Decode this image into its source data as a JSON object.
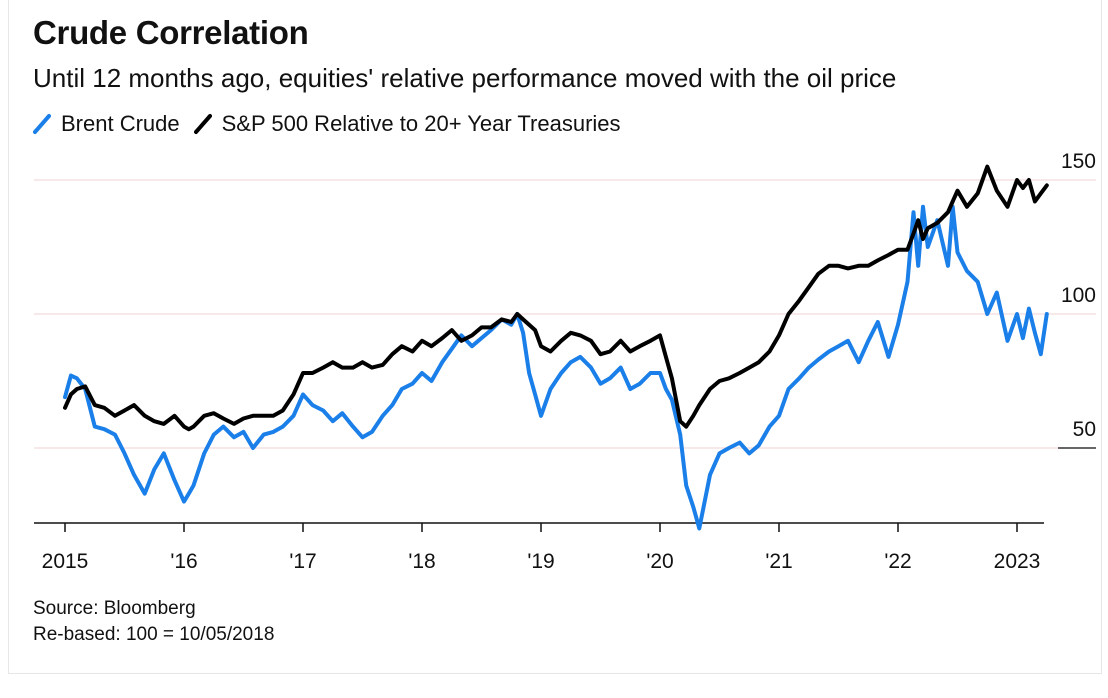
{
  "title": "Crude Correlation",
  "subtitle": "Until 12 months ago, equities' relative performance moved with the oil price",
  "source": "Source: Bloomberg",
  "note": "Re-based: 100 = 10/05/2018",
  "colors": {
    "brent": "#1a7fe8",
    "spx": "#000000",
    "grid": "#f2dcdc",
    "axis": "#111111"
  },
  "chart_data": {
    "type": "line",
    "title": "Crude Correlation",
    "subtitle": "Until 12 months ago, equities' relative performance moved with the oil price",
    "xlabel": "",
    "ylabel": "",
    "xlim": [
      2015.0,
      2023.25
    ],
    "ylim": [
      50,
      150
    ],
    "y_ticks": [
      50,
      100,
      150
    ],
    "x_ticks": [
      {
        "value": 2015,
        "label": "2015"
      },
      {
        "value": 2016,
        "label": "'16"
      },
      {
        "value": 2017,
        "label": "'17"
      },
      {
        "value": 2018,
        "label": "'18"
      },
      {
        "value": 2019,
        "label": "'19"
      },
      {
        "value": 2020,
        "label": "'20"
      },
      {
        "value": 2021,
        "label": "'21"
      },
      {
        "value": 2022,
        "label": "'22"
      },
      {
        "value": 2023,
        "label": "2023"
      }
    ],
    "grid": true,
    "legend_position": "top-left",
    "series": [
      {
        "name": "Brent Crude",
        "color": "#1a7fe8",
        "x": [
          2015.0,
          2015.05,
          2015.1,
          2015.17,
          2015.25,
          2015.33,
          2015.42,
          2015.5,
          2015.58,
          2015.67,
          2015.75,
          2015.83,
          2015.92,
          2016.0,
          2016.04,
          2016.08,
          2016.17,
          2016.25,
          2016.33,
          2016.42,
          2016.5,
          2016.58,
          2016.67,
          2016.75,
          2016.83,
          2016.92,
          2017.0,
          2017.08,
          2017.17,
          2017.25,
          2017.33,
          2017.42,
          2017.5,
          2017.58,
          2017.67,
          2017.75,
          2017.83,
          2017.92,
          2018.0,
          2018.08,
          2018.17,
          2018.25,
          2018.33,
          2018.42,
          2018.5,
          2018.58,
          2018.67,
          2018.75,
          2018.8,
          2018.85,
          2018.9,
          2018.95,
          2019.0,
          2019.08,
          2019.17,
          2019.25,
          2019.33,
          2019.42,
          2019.5,
          2019.58,
          2019.67,
          2019.75,
          2019.83,
          2019.92,
          2020.0,
          2020.05,
          2020.1,
          2020.17,
          2020.22,
          2020.28,
          2020.33,
          2020.42,
          2020.5,
          2020.58,
          2020.67,
          2020.75,
          2020.83,
          2020.92,
          2021.0,
          2021.08,
          2021.17,
          2021.25,
          2021.33,
          2021.42,
          2021.5,
          2021.58,
          2021.67,
          2021.75,
          2021.83,
          2021.92,
          2022.0,
          2022.08,
          2022.13,
          2022.17,
          2022.21,
          2022.25,
          2022.33,
          2022.42,
          2022.46,
          2022.5,
          2022.58,
          2022.67,
          2022.75,
          2022.83,
          2022.92,
          2023.0,
          2023.05,
          2023.1,
          2023.15,
          2023.2,
          2023.25
        ],
        "y": [
          69,
          77,
          76,
          72,
          58,
          57,
          55,
          48,
          40,
          33,
          42,
          48,
          38,
          30,
          33,
          36,
          48,
          55,
          58,
          54,
          56,
          50,
          55,
          56,
          58,
          62,
          70,
          66,
          64,
          60,
          63,
          58,
          54,
          56,
          62,
          66,
          72,
          74,
          78,
          75,
          82,
          87,
          92,
          88,
          91,
          94,
          98,
          96,
          100,
          93,
          78,
          70,
          62,
          72,
          78,
          82,
          84,
          80,
          74,
          76,
          80,
          72,
          74,
          78,
          78,
          72,
          68,
          55,
          36,
          28,
          20,
          40,
          48,
          50,
          52,
          48,
          51,
          58,
          62,
          72,
          76,
          80,
          83,
          86,
          88,
          90,
          82,
          90,
          97,
          84,
          96,
          112,
          138,
          118,
          140,
          125,
          135,
          118,
          140,
          123,
          116,
          112,
          100,
          108,
          90,
          100,
          91,
          102,
          93,
          85,
          100
        ]
      },
      {
        "name": "S&P 500 Relative to 20+ Year Treasuries",
        "color": "#000000",
        "x": [
          2015.0,
          2015.05,
          2015.1,
          2015.17,
          2015.25,
          2015.33,
          2015.42,
          2015.5,
          2015.58,
          2015.67,
          2015.75,
          2015.83,
          2015.92,
          2016.0,
          2016.04,
          2016.08,
          2016.17,
          2016.25,
          2016.33,
          2016.42,
          2016.5,
          2016.58,
          2016.67,
          2016.75,
          2016.83,
          2016.92,
          2017.0,
          2017.08,
          2017.17,
          2017.25,
          2017.33,
          2017.42,
          2017.5,
          2017.58,
          2017.67,
          2017.75,
          2017.83,
          2017.92,
          2018.0,
          2018.08,
          2018.17,
          2018.25,
          2018.33,
          2018.42,
          2018.5,
          2018.58,
          2018.67,
          2018.75,
          2018.8,
          2018.85,
          2018.9,
          2018.95,
          2019.0,
          2019.08,
          2019.17,
          2019.25,
          2019.33,
          2019.42,
          2019.5,
          2019.58,
          2019.67,
          2019.75,
          2019.83,
          2019.92,
          2020.0,
          2020.05,
          2020.1,
          2020.17,
          2020.22,
          2020.28,
          2020.33,
          2020.42,
          2020.5,
          2020.58,
          2020.67,
          2020.75,
          2020.83,
          2020.92,
          2021.0,
          2021.08,
          2021.17,
          2021.25,
          2021.33,
          2021.42,
          2021.5,
          2021.58,
          2021.67,
          2021.75,
          2021.83,
          2021.92,
          2022.0,
          2022.08,
          2022.13,
          2022.17,
          2022.21,
          2022.25,
          2022.33,
          2022.42,
          2022.46,
          2022.5,
          2022.58,
          2022.67,
          2022.75,
          2022.83,
          2022.92,
          2023.0,
          2023.05,
          2023.1,
          2023.15,
          2023.2,
          2023.25
        ],
        "y": [
          65,
          70,
          72,
          73,
          66,
          65,
          62,
          64,
          66,
          62,
          60,
          59,
          62,
          58,
          57,
          58,
          62,
          63,
          61,
          59,
          61,
          62,
          62,
          62,
          64,
          70,
          78,
          78,
          80,
          82,
          80,
          80,
          82,
          80,
          81,
          85,
          88,
          86,
          90,
          88,
          91,
          94,
          90,
          92,
          95,
          95,
          98,
          97,
          100,
          98,
          96,
          94,
          88,
          86,
          90,
          93,
          92,
          90,
          85,
          86,
          90,
          86,
          88,
          90,
          92,
          84,
          76,
          60,
          58,
          62,
          66,
          72,
          75,
          76,
          78,
          80,
          82,
          86,
          92,
          100,
          105,
          110,
          115,
          118,
          118,
          117,
          118,
          118,
          120,
          122,
          124,
          124,
          130,
          135,
          128,
          132,
          134,
          138,
          142,
          146,
          140,
          145,
          155,
          146,
          140,
          150,
          147,
          150,
          142,
          145,
          148
        ]
      }
    ]
  }
}
